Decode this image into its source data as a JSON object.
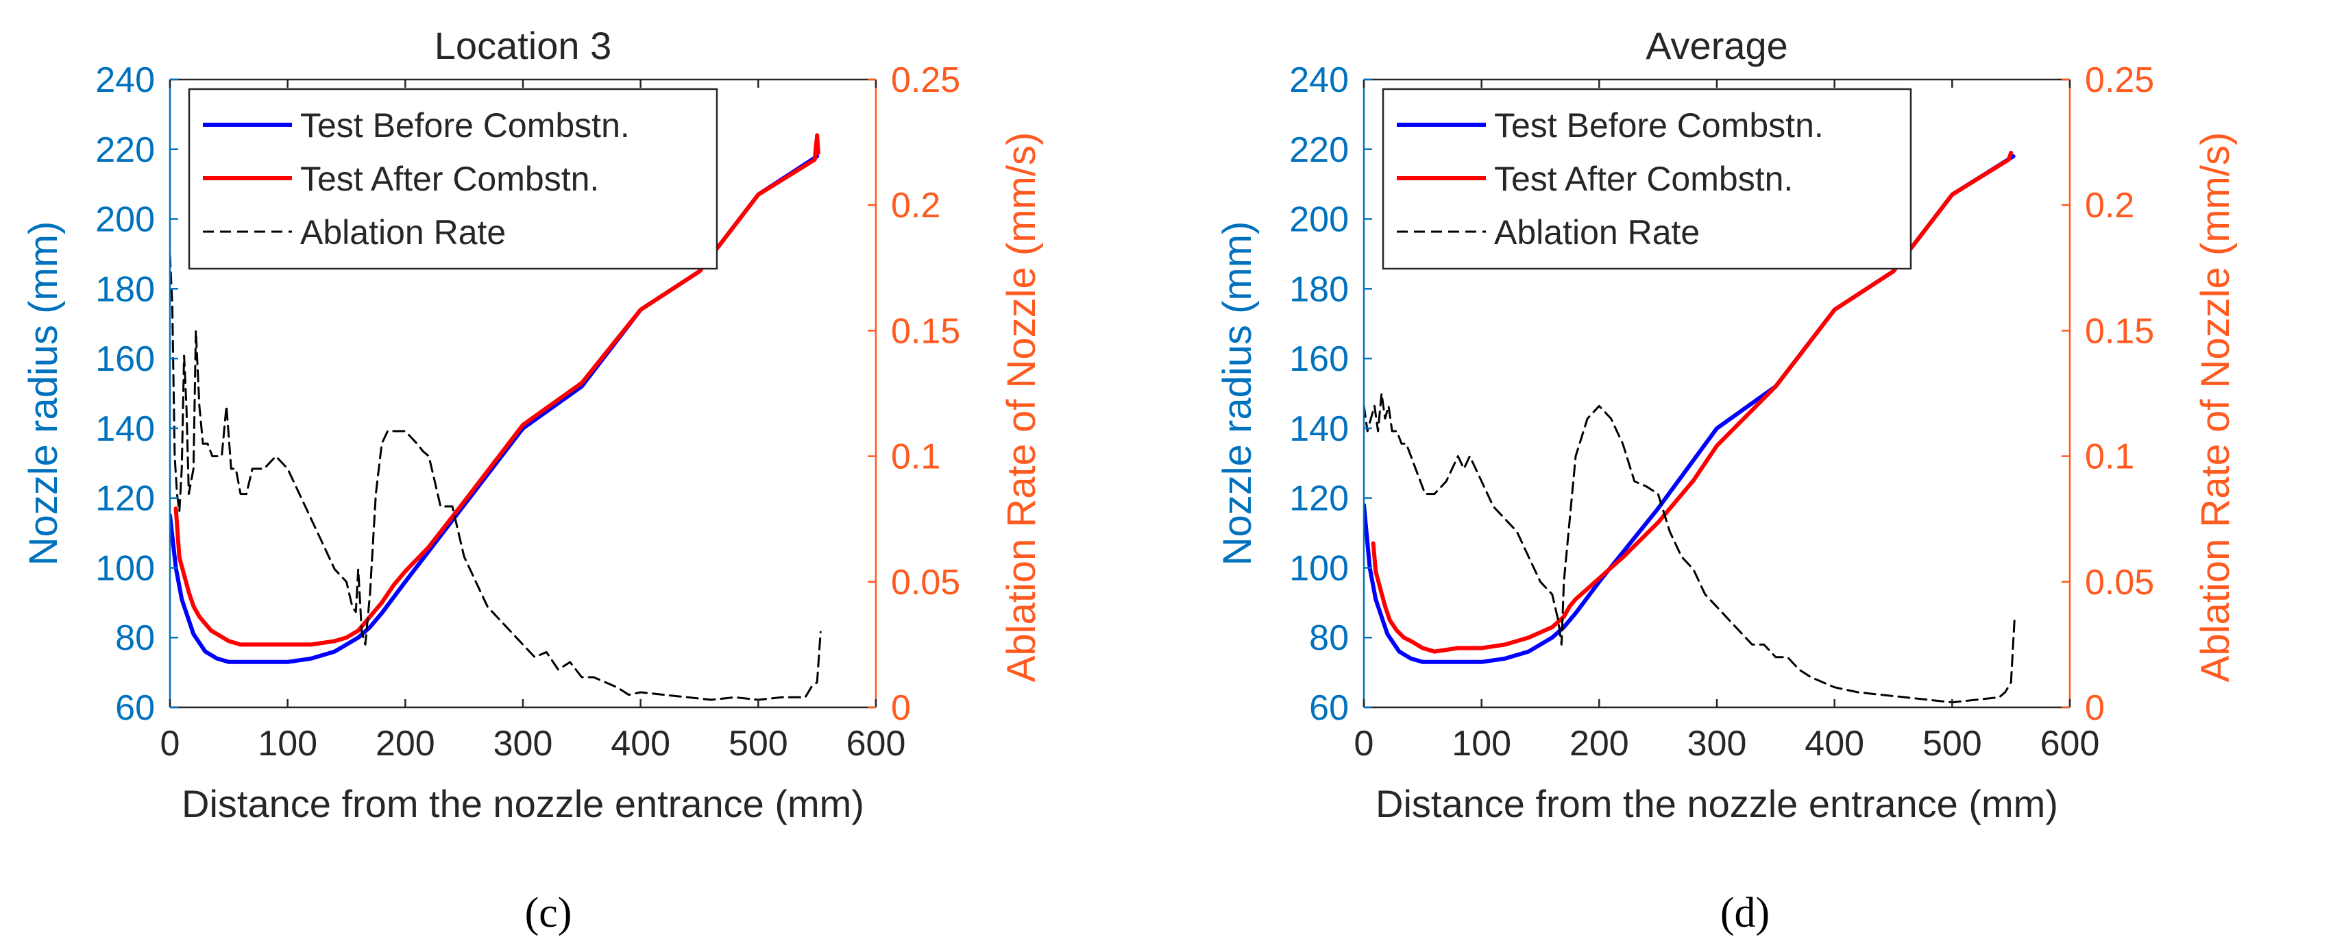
{
  "chart_data": [
    {
      "type": "line",
      "panel_label": "(c)",
      "title": "Location 3",
      "xlabel": "Distance from the nozzle entrance (mm)",
      "ylabel_left": "Nozzle radius (mm)",
      "ylabel_right": "Ablation Rate of Nozzle (mm/s)",
      "xlim": [
        0,
        600
      ],
      "ylim_left": [
        60,
        240
      ],
      "ylim_right": [
        0,
        0.25
      ],
      "xticks": [
        "0",
        "100",
        "200",
        "300",
        "400",
        "500",
        "600"
      ],
      "yticks_left": [
        "60",
        "80",
        "100",
        "120",
        "140",
        "160",
        "180",
        "200",
        "220",
        "240"
      ],
      "yticks_right": [
        "0",
        "0.05",
        "0.1",
        "0.15",
        "0.2",
        "0.25"
      ],
      "legend_position": "top-left",
      "grid": false,
      "series": [
        {
          "name": "Test Before Combstn.",
          "axis": "left",
          "color": "#0000FF",
          "style": "solid",
          "x": [
            0,
            5,
            10,
            20,
            30,
            40,
            50,
            60,
            80,
            100,
            120,
            140,
            160,
            170,
            180,
            200,
            250,
            300,
            350,
            400,
            450,
            500,
            550
          ],
          "y": [
            115,
            100,
            91,
            81,
            76,
            74,
            73,
            73,
            73,
            73,
            74,
            76,
            80,
            83,
            87,
            96,
            118,
            140,
            152,
            174,
            185,
            207,
            218
          ]
        },
        {
          "name": "Test After Combstn.",
          "axis": "left",
          "color": "#FF0000",
          "style": "solid",
          "x": [
            5,
            8,
            12,
            16,
            20,
            25,
            30,
            35,
            40,
            50,
            60,
            80,
            100,
            120,
            140,
            150,
            160,
            165,
            170,
            175,
            180,
            190,
            200,
            220,
            250,
            300,
            350,
            400,
            450,
            500,
            548,
            550,
            551
          ],
          "y": [
            117,
            103,
            98,
            93,
            89,
            86,
            84,
            82,
            81,
            79,
            78,
            78,
            78,
            78,
            79,
            80,
            82,
            84,
            86,
            88,
            90,
            95,
            99,
            106,
            119,
            141,
            153,
            174,
            185,
            207,
            217,
            224,
            219
          ]
        },
        {
          "name": "Ablation Rate",
          "axis": "right",
          "color": "#000000",
          "style": "dashed",
          "x": [
            0,
            2,
            4,
            6,
            8,
            10,
            12,
            14,
            16,
            18,
            20,
            22,
            25,
            28,
            32,
            36,
            40,
            44,
            48,
            52,
            56,
            60,
            65,
            70,
            80,
            90,
            100,
            110,
            120,
            130,
            140,
            150,
            155,
            158,
            160,
            163,
            166,
            170,
            175,
            180,
            185,
            190,
            200,
            210,
            215,
            220,
            225,
            230,
            240,
            250,
            260,
            270,
            280,
            290,
            300,
            310,
            320,
            330,
            340,
            350,
            360,
            370,
            380,
            390,
            400,
            420,
            440,
            460,
            480,
            500,
            520,
            540,
            545,
            550,
            553
          ],
          "y": [
            0.18,
            0.16,
            0.1,
            0.085,
            0.078,
            0.095,
            0.14,
            0.12,
            0.085,
            0.09,
            0.095,
            0.15,
            0.12,
            0.105,
            0.105,
            0.1,
            0.1,
            0.1,
            0.12,
            0.095,
            0.095,
            0.085,
            0.085,
            0.095,
            0.095,
            0.1,
            0.095,
            0.085,
            0.075,
            0.065,
            0.055,
            0.05,
            0.04,
            0.038,
            0.055,
            0.03,
            0.025,
            0.045,
            0.085,
            0.105,
            0.11,
            0.11,
            0.11,
            0.105,
            0.102,
            0.1,
            0.09,
            0.08,
            0.08,
            0.06,
            0.05,
            0.04,
            0.035,
            0.03,
            0.025,
            0.02,
            0.022,
            0.015,
            0.018,
            0.012,
            0.012,
            0.01,
            0.008,
            0.005,
            0.006,
            0.005,
            0.004,
            0.003,
            0.004,
            0.003,
            0.004,
            0.004,
            0.008,
            0.01,
            0.03
          ]
        }
      ]
    },
    {
      "type": "line",
      "panel_label": "(d)",
      "title": "Average",
      "xlabel": "Distance from the nozzle entrance (mm)",
      "ylabel_left": "Nozzle radius (mm)",
      "ylabel_right": "Ablation Rate of Nozzle (mm/s)",
      "xlim": [
        0,
        600
      ],
      "ylim_left": [
        60,
        240
      ],
      "ylim_right": [
        0,
        0.25
      ],
      "xticks": [
        "0",
        "100",
        "200",
        "300",
        "400",
        "500",
        "600"
      ],
      "yticks_left": [
        "60",
        "80",
        "100",
        "120",
        "140",
        "160",
        "180",
        "200",
        "220",
        "240"
      ],
      "yticks_right": [
        "0",
        "0.05",
        "0.1",
        "0.15",
        "0.2",
        "0.25"
      ],
      "legend_position": "top-left",
      "grid": false,
      "series": [
        {
          "name": "Test Before Combstn.",
          "axis": "left",
          "color": "#0000FF",
          "style": "solid",
          "x": [
            0,
            5,
            10,
            20,
            30,
            40,
            50,
            60,
            80,
            100,
            120,
            140,
            160,
            170,
            180,
            200,
            250,
            300,
            350,
            400,
            450,
            500,
            552
          ],
          "y": [
            118,
            100,
            91,
            81,
            76,
            74,
            73,
            73,
            73,
            73,
            74,
            76,
            80,
            83,
            87,
            96,
            117,
            140,
            152,
            174,
            185,
            207,
            218
          ]
        },
        {
          "name": "Test After Combstn.",
          "axis": "left",
          "color": "#FF0000",
          "style": "solid",
          "x": [
            8,
            10,
            14,
            18,
            22,
            28,
            34,
            40,
            50,
            60,
            80,
            100,
            120,
            140,
            160,
            170,
            175,
            180,
            190,
            200,
            220,
            250,
            280,
            300,
            350,
            400,
            450,
            500,
            548,
            550
          ],
          "y": [
            107,
            99,
            94,
            89,
            85,
            82,
            80,
            79,
            77,
            76,
            77,
            77,
            78,
            80,
            83,
            86,
            89,
            91,
            94,
            97,
            103,
            113,
            125,
            135,
            152,
            174,
            185,
            207,
            217,
            219
          ]
        },
        {
          "name": "Ablation Rate",
          "axis": "right",
          "color": "#000000",
          "style": "dashed",
          "x": [
            0,
            3,
            6,
            9,
            12,
            15,
            18,
            21,
            24,
            28,
            32,
            36,
            40,
            44,
            48,
            52,
            56,
            60,
            70,
            80,
            85,
            90,
            95,
            100,
            110,
            120,
            130,
            140,
            150,
            160,
            165,
            168,
            170,
            175,
            180,
            190,
            200,
            210,
            220,
            230,
            240,
            250,
            260,
            270,
            280,
            290,
            300,
            310,
            320,
            330,
            340,
            350,
            360,
            370,
            380,
            390,
            400,
            420,
            440,
            460,
            480,
            500,
            520,
            540,
            545,
            550,
            553
          ],
          "y": [
            0.12,
            0.11,
            0.115,
            0.12,
            0.11,
            0.125,
            0.115,
            0.12,
            0.11,
            0.11,
            0.105,
            0.105,
            0.1,
            0.095,
            0.09,
            0.085,
            0.085,
            0.085,
            0.09,
            0.1,
            0.095,
            0.1,
            0.095,
            0.09,
            0.08,
            0.075,
            0.07,
            0.06,
            0.05,
            0.045,
            0.035,
            0.025,
            0.05,
            0.075,
            0.1,
            0.115,
            0.12,
            0.115,
            0.105,
            0.09,
            0.088,
            0.085,
            0.07,
            0.06,
            0.055,
            0.045,
            0.04,
            0.035,
            0.03,
            0.025,
            0.025,
            0.02,
            0.02,
            0.015,
            0.012,
            0.01,
            0.008,
            0.006,
            0.005,
            0.004,
            0.003,
            0.002,
            0.003,
            0.004,
            0.006,
            0.01,
            0.035
          ]
        }
      ]
    }
  ]
}
